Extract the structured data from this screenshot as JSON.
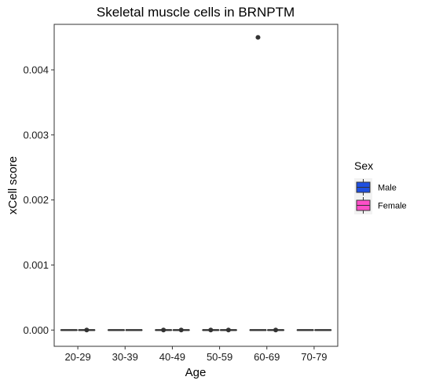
{
  "chart_data": {
    "type": "boxplot",
    "title": "Skeletal muscle cells in BRNPTM",
    "xlabel": "Age",
    "ylabel": "xCell score",
    "ylim": [
      -0.00025,
      0.0047
    ],
    "yticks": [
      0.0,
      0.001,
      0.002,
      0.003,
      0.004
    ],
    "ytick_labels": [
      "0.000",
      "0.001",
      "0.002",
      "0.003",
      "0.004"
    ],
    "categories": [
      "20-29",
      "30-39",
      "40-49",
      "50-59",
      "60-69",
      "70-79"
    ],
    "grid": false,
    "legend": {
      "title": "Sex",
      "position": "right"
    },
    "series": [
      {
        "name": "Male",
        "color": "#1f4fe0",
        "boxes": [
          {
            "q1": 0,
            "median": 0,
            "q3": 0,
            "whisker_low": 0,
            "whisker_high": 0,
            "outliers": []
          },
          {
            "q1": 0,
            "median": 0,
            "q3": 0,
            "whisker_low": 0,
            "whisker_high": 0,
            "outliers": []
          },
          {
            "q1": 0,
            "median": 0,
            "q3": 0,
            "whisker_low": 0,
            "whisker_high": 0,
            "outliers": [
              0.0
            ]
          },
          {
            "q1": 0,
            "median": 0,
            "q3": 0,
            "whisker_low": 0,
            "whisker_high": 0,
            "outliers": [
              0.0
            ]
          },
          {
            "q1": 0,
            "median": 0,
            "q3": 0,
            "whisker_low": 0,
            "whisker_high": 0,
            "outliers": [
              0.0045
            ]
          },
          {
            "q1": 0,
            "median": 0,
            "q3": 0,
            "whisker_low": 0,
            "whisker_high": 0,
            "outliers": []
          }
        ]
      },
      {
        "name": "Female",
        "color": "#ff4fc8",
        "boxes": [
          {
            "q1": 0,
            "median": 0,
            "q3": 0,
            "whisker_low": 0,
            "whisker_high": 0,
            "outliers": [
              0.0
            ]
          },
          {
            "q1": 0,
            "median": 0,
            "q3": 0,
            "whisker_low": 0,
            "whisker_high": 0,
            "outliers": []
          },
          {
            "q1": 0,
            "median": 0,
            "q3": 0,
            "whisker_low": 0,
            "whisker_high": 0,
            "outliers": [
              0.0
            ]
          },
          {
            "q1": 0,
            "median": 0,
            "q3": 0,
            "whisker_low": 0,
            "whisker_high": 0,
            "outliers": [
              0.0
            ]
          },
          {
            "q1": 0,
            "median": 0,
            "q3": 0,
            "whisker_low": 0,
            "whisker_high": 0,
            "outliers": [
              0.0
            ]
          },
          {
            "q1": 0,
            "median": 0,
            "q3": 0,
            "whisker_low": 0,
            "whisker_high": 0,
            "outliers": []
          }
        ]
      }
    ]
  }
}
